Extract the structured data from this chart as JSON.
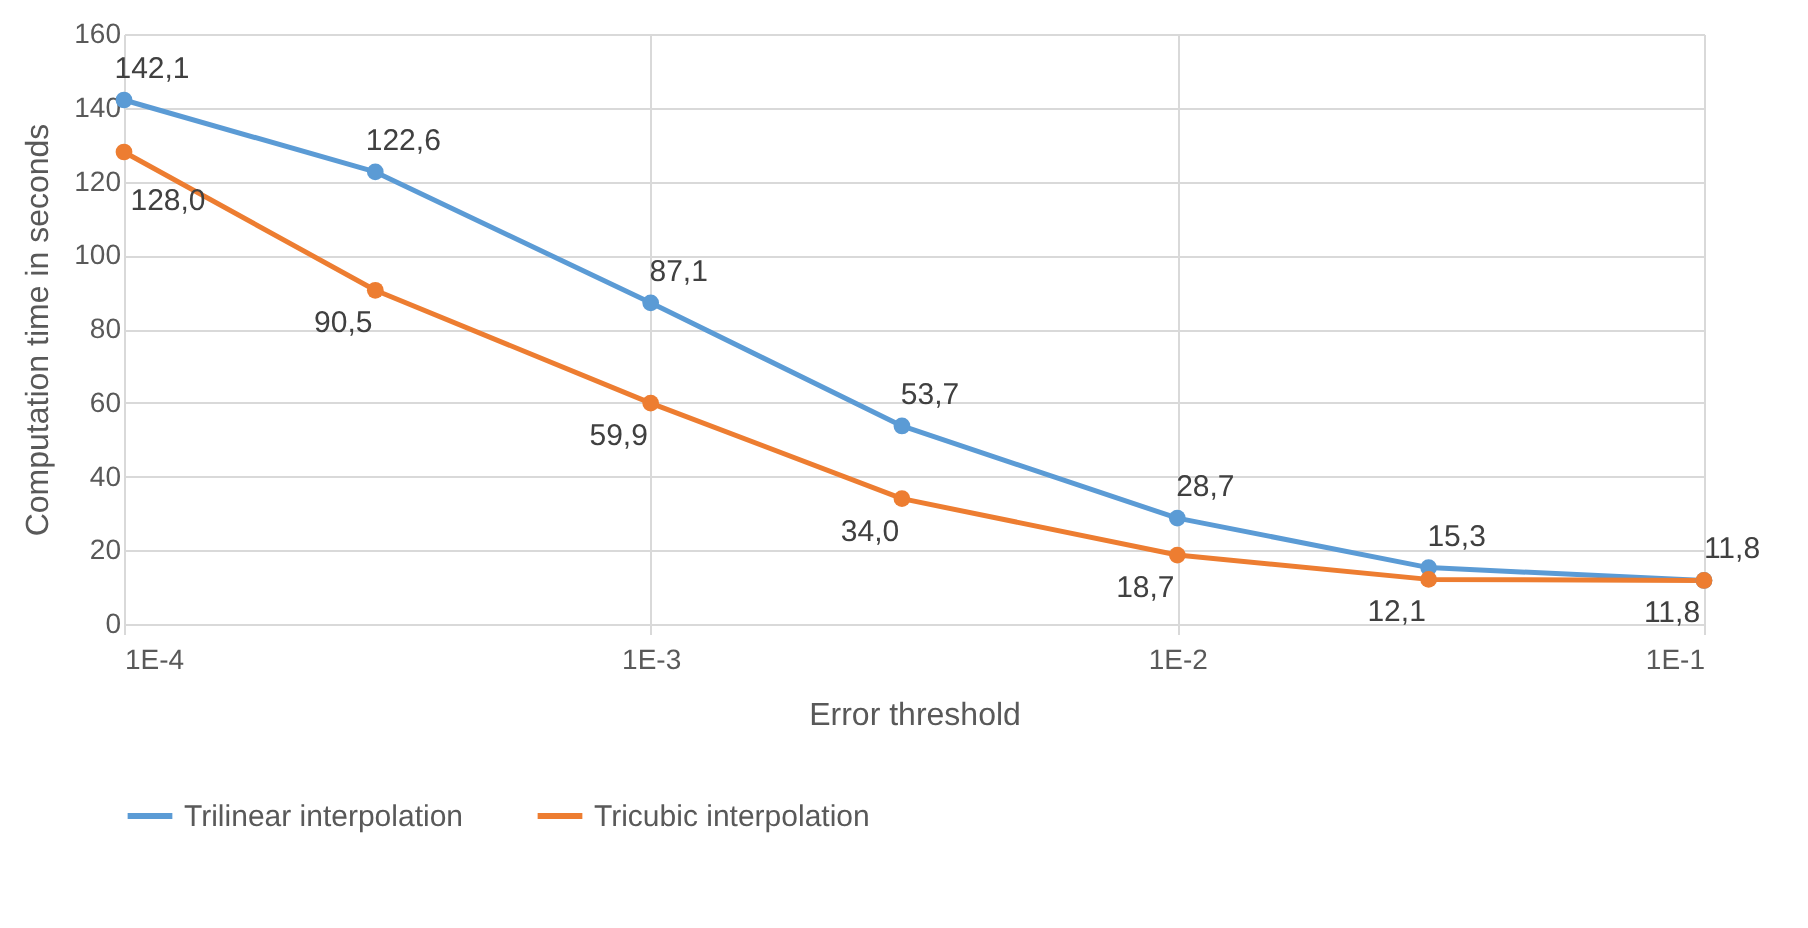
{
  "chart_data": {
    "type": "line",
    "xlabel": "Error threshold",
    "ylabel": "Computation time in seconds",
    "x": [
      0.0001,
      0.0003,
      0.001,
      0.003,
      0.01,
      0.03,
      0.1
    ],
    "series": [
      {
        "name": "Trilinear interpolation",
        "color": "#5b9bd5",
        "values": [
          142.1,
          122.6,
          87.1,
          53.7,
          28.7,
          15.3,
          11.8
        ],
        "value_labels": [
          "142,1",
          "122,6",
          "87,1",
          "53,7",
          "28,7",
          "15,3",
          "11,8"
        ]
      },
      {
        "name": "Tricubic interpolation",
        "color": "#ed7d31",
        "values": [
          128.0,
          90.5,
          59.9,
          34.0,
          18.7,
          12.1,
          11.8
        ],
        "value_labels": [
          "128,0",
          "90,5",
          "59,9",
          "34,0",
          "18,7",
          "12,1",
          "11,8"
        ]
      }
    ],
    "log": "x",
    "xlim": [
      0.0001,
      0.1
    ],
    "xticks": [
      {
        "value": 0.0001,
        "label": "1E-4"
      },
      {
        "value": 0.001,
        "label": "1E-3"
      },
      {
        "value": 0.01,
        "label": "1E-2"
      },
      {
        "value": 0.1,
        "label": "1E-1"
      }
    ],
    "ylim": [
      0,
      160
    ],
    "yticks": [
      0,
      20,
      40,
      60,
      80,
      100,
      120,
      140,
      160
    ],
    "grid": true,
    "legend": "bottom",
    "marker": "circle",
    "line_style": "solid"
  }
}
